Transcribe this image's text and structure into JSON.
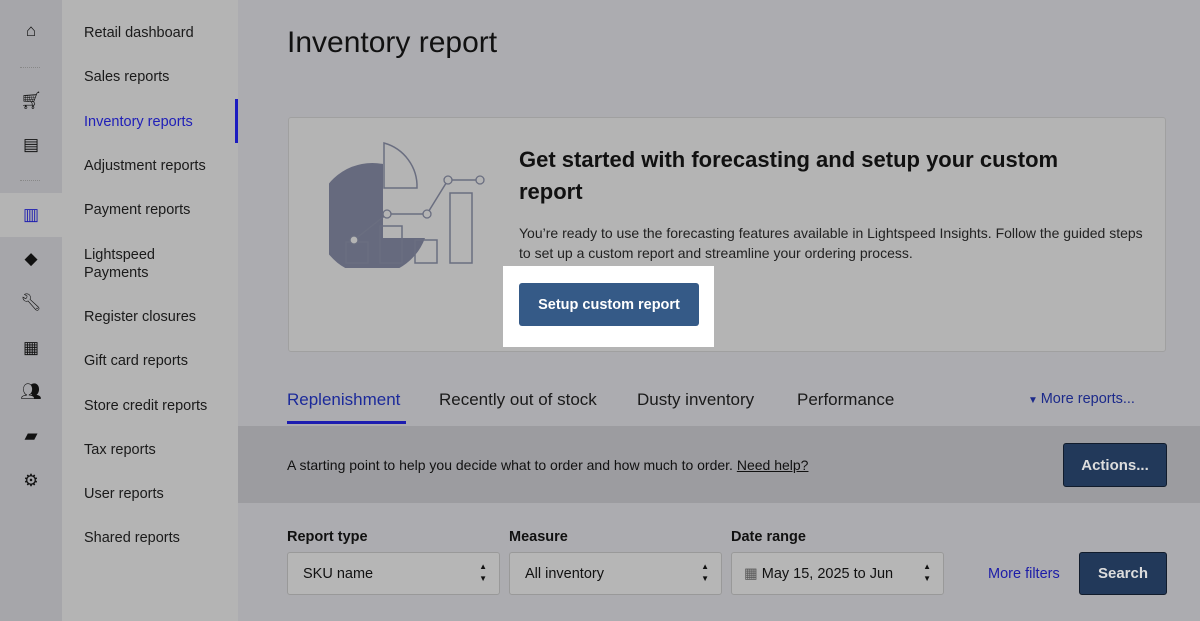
{
  "rail": {
    "icons": [
      "home-icon",
      "cart-icon",
      "register-icon",
      "reports-icon",
      "tag-icon",
      "wrench-icon",
      "inventory-icon",
      "customers-icon",
      "wallet-icon",
      "gear-icon"
    ]
  },
  "sidebar": {
    "items": [
      {
        "label": "Retail dashboard"
      },
      {
        "label": "Sales reports"
      },
      {
        "label": "Inventory reports"
      },
      {
        "label": "Adjustment reports"
      },
      {
        "label": "Payment reports"
      },
      {
        "label": "Lightspeed Payments"
      },
      {
        "label": "Register closures"
      },
      {
        "label": "Gift card reports"
      },
      {
        "label": "Store credit reports"
      },
      {
        "label": "Tax reports"
      },
      {
        "label": "User reports"
      },
      {
        "label": "Shared reports"
      }
    ],
    "active": "Inventory reports"
  },
  "page": {
    "title": "Inventory report"
  },
  "promo": {
    "heading": "Get started with forecasting and setup your custom report",
    "body": "You’re ready to use the forecasting features available in Lightspeed Insights. Follow the guided steps to set up a custom report and streamline your ordering process.",
    "button": "Setup custom report"
  },
  "tabs": [
    {
      "label": "Replenishment"
    },
    {
      "label": "Recently out of stock"
    },
    {
      "label": "Dusty inventory"
    },
    {
      "label": "Performance"
    }
  ],
  "more_reports": "More reports...",
  "band": {
    "text": "A starting point to help you decide what to order and how much to order.",
    "help": "Need help?",
    "actions": "Actions..."
  },
  "filters": {
    "report_type": {
      "label": "Report type",
      "value": "SKU name"
    },
    "measure": {
      "label": "Measure",
      "value": "All inventory"
    },
    "date_range": {
      "label": "Date range",
      "value": "May 15, 2025 to Jun"
    },
    "more_filters": "More filters",
    "search": "Search"
  },
  "colors": {
    "primary": "#355a87",
    "accent": "#1c1cb0"
  }
}
